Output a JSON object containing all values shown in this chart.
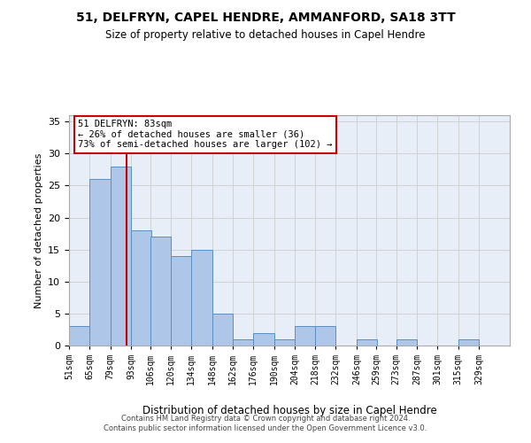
{
  "title1": "51, DELFRYN, CAPEL HENDRE, AMMANFORD, SA18 3TT",
  "title2": "Size of property relative to detached houses in Capel Hendre",
  "xlabel": "Distribution of detached houses by size in Capel Hendre",
  "ylabel": "Number of detached properties",
  "bar_labels": [
    "51sqm",
    "65sqm",
    "79sqm",
    "93sqm",
    "106sqm",
    "120sqm",
    "134sqm",
    "148sqm",
    "162sqm",
    "176sqm",
    "190sqm",
    "204sqm",
    "218sqm",
    "232sqm",
    "246sqm",
    "259sqm",
    "273sqm",
    "287sqm",
    "301sqm",
    "315sqm",
    "329sqm"
  ],
  "bar_values": [
    3,
    26,
    28,
    18,
    17,
    14,
    15,
    5,
    1,
    2,
    1,
    3,
    3,
    0,
    1,
    0,
    1,
    0,
    0,
    1,
    0
  ],
  "bar_color": "#aec6e8",
  "bar_edgecolor": "#5a8fc2",
  "vline_color": "#cc0000",
  "annotation_text": "51 DELFRYN: 83sqm\n← 26% of detached houses are smaller (36)\n73% of semi-detached houses are larger (102) →",
  "annotation_box_color": "#ffffff",
  "annotation_box_edgecolor": "#cc0000",
  "grid_color": "#cccccc",
  "bg_color": "#e8eef8",
  "footer1": "Contains HM Land Registry data © Crown copyright and database right 2024.",
  "footer2": "Contains public sector information licensed under the Open Government Licence v3.0.",
  "yticks": [
    0,
    5,
    10,
    15,
    20,
    25,
    30,
    35
  ],
  "ylim": [
    0,
    36
  ],
  "centers": [
    51,
    65,
    79,
    93,
    106,
    120,
    134,
    148,
    162,
    176,
    190,
    204,
    218,
    232,
    246,
    259,
    273,
    287,
    301,
    315,
    329
  ]
}
